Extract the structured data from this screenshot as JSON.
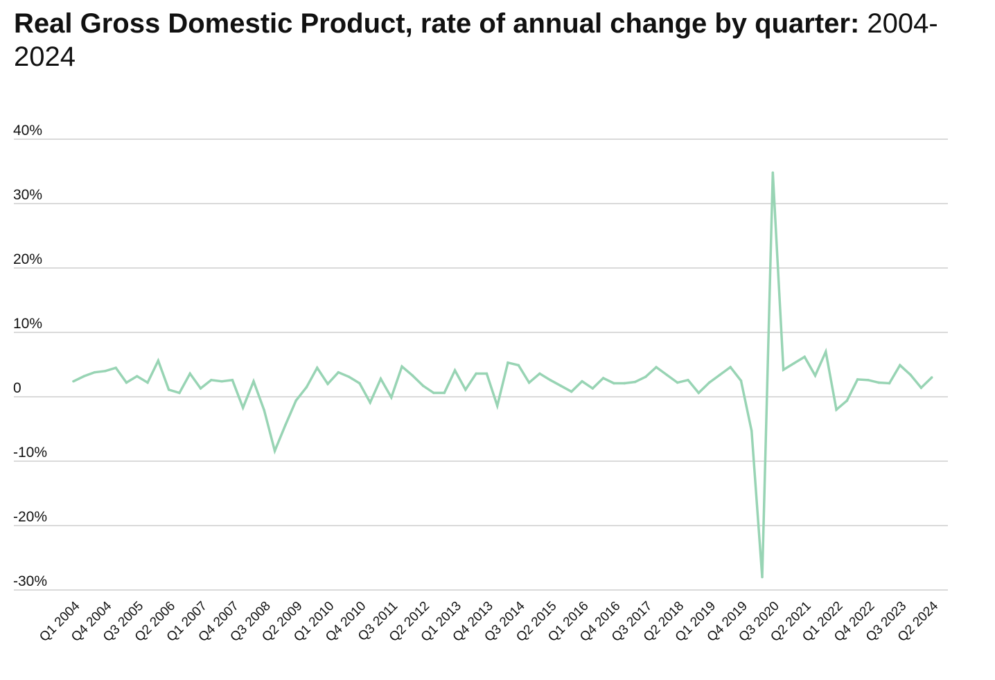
{
  "chart_data": {
    "type": "line",
    "title_bold": "Real Gross Domestic Product, rate of annual change by quarter:",
    "title_regular": " 2004- 2024",
    "xlabel": "",
    "ylabel": "",
    "ylim": [
      -30,
      40
    ],
    "y_ticks": [
      {
        "value": 40,
        "label": "40%"
      },
      {
        "value": 30,
        "label": "30%"
      },
      {
        "value": 20,
        "label": "20%"
      },
      {
        "value": 10,
        "label": "10%"
      },
      {
        "value": 0,
        "label": "0"
      },
      {
        "value": -10,
        "label": "-10%"
      },
      {
        "value": -20,
        "label": "-20%"
      },
      {
        "value": -30,
        "label": "-30%"
      }
    ],
    "x_tick_labels": [
      "Q1 2004",
      "Q4 2004",
      "Q3 2005",
      "Q2 2006",
      "Q1 2007",
      "Q4 2007",
      "Q3 2008",
      "Q2 2009",
      "Q1 2010",
      "Q4 2010",
      "Q3 2011",
      "Q2 2012",
      "Q1 2013",
      "Q4 2013",
      "Q3 2014",
      "Q2 2015",
      "Q1 2016",
      "Q4 2016",
      "Q3 2017",
      "Q2 2018",
      "Q1 2019",
      "Q4 2019",
      "Q3 2020",
      "Q2 2021",
      "Q1 2022",
      "Q4 2022",
      "Q3 2023",
      "Q2 2024"
    ],
    "grid": true,
    "line_color": "#98d4b4",
    "series": [
      {
        "x": [
          "Q1 2004",
          "Q2 2004",
          "Q3 2004",
          "Q4 2004",
          "Q1 2005",
          "Q2 2005",
          "Q3 2005",
          "Q4 2005",
          "Q1 2006",
          "Q2 2006",
          "Q3 2006",
          "Q4 2006",
          "Q1 2007",
          "Q2 2007",
          "Q3 2007",
          "Q4 2007",
          "Q1 2008",
          "Q2 2008",
          "Q3 2008",
          "Q4 2008",
          "Q1 2009",
          "Q2 2009",
          "Q3 2009",
          "Q4 2009",
          "Q1 2010",
          "Q2 2010",
          "Q3 2010",
          "Q4 2010",
          "Q1 2011",
          "Q2 2011",
          "Q3 2011",
          "Q4 2011",
          "Q1 2012",
          "Q2 2012",
          "Q3 2012",
          "Q4 2012",
          "Q1 2013",
          "Q2 2013",
          "Q3 2013",
          "Q4 2013",
          "Q1 2014",
          "Q2 2014",
          "Q3 2014",
          "Q4 2014",
          "Q1 2015",
          "Q2 2015",
          "Q3 2015",
          "Q4 2015",
          "Q1 2016",
          "Q2 2016",
          "Q3 2016",
          "Q4 2016",
          "Q1 2017",
          "Q2 2017",
          "Q3 2017",
          "Q4 2017",
          "Q1 2018",
          "Q2 2018",
          "Q3 2018",
          "Q4 2018",
          "Q1 2019",
          "Q2 2019",
          "Q3 2019",
          "Q4 2019",
          "Q1 2020",
          "Q2 2020",
          "Q3 2020",
          "Q4 2020",
          "Q1 2021",
          "Q2 2021",
          "Q3 2021",
          "Q4 2021",
          "Q1 2022",
          "Q2 2022",
          "Q3 2022",
          "Q4 2022",
          "Q1 2023",
          "Q2 2023",
          "Q3 2023",
          "Q4 2023",
          "Q1 2024",
          "Q2 2024",
          "Q3 2024"
        ],
        "values": [
          2.4,
          3.2,
          3.8,
          4.0,
          4.5,
          2.2,
          3.2,
          2.2,
          5.6,
          1.1,
          0.6,
          3.6,
          1.3,
          2.6,
          2.4,
          2.6,
          -1.7,
          2.4,
          -2.1,
          -8.4,
          -4.4,
          -0.6,
          1.5,
          4.5,
          2.0,
          3.8,
          3.1,
          2.1,
          -0.9,
          2.8,
          -0.1,
          4.7,
          3.3,
          1.7,
          0.6,
          0.6,
          4.1,
          1.1,
          3.6,
          3.6,
          -1.4,
          5.3,
          4.9,
          2.2,
          3.6,
          2.6,
          1.7,
          0.8,
          2.4,
          1.3,
          2.9,
          2.1,
          2.1,
          2.3,
          3.1,
          4.6,
          3.4,
          2.2,
          2.6,
          0.6,
          2.2,
          3.4,
          4.6,
          2.5,
          -5.3,
          -28.0,
          34.8,
          4.2,
          5.2,
          6.2,
          3.3,
          7.0,
          -2.0,
          -0.6,
          2.7,
          2.6,
          2.2,
          2.1,
          4.9,
          3.4,
          1.4,
          3.0,
          null
        ]
      }
    ]
  }
}
